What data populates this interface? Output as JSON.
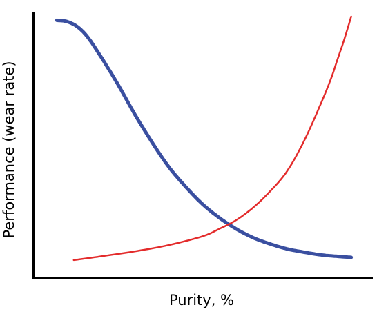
{
  "chart_data": {
    "type": "line",
    "xlabel": "Purity, %",
    "ylabel": "Performance (wear rate)",
    "xlim": [
      0,
      100
    ],
    "ylim": [
      0,
      100
    ],
    "grid": false,
    "legend": "none",
    "series": [
      {
        "color": "#3a4fa0",
        "x": [
          7,
          10,
          13,
          16,
          20,
          25,
          30,
          35,
          40,
          45,
          50,
          55,
          60,
          65,
          70,
          75,
          80,
          85,
          90,
          94
        ],
        "y": [
          98.5,
          98.0,
          96.0,
          92.0,
          84.0,
          73.0,
          61.0,
          50.0,
          40.0,
          32.0,
          25.0,
          19.5,
          15.0,
          11.5,
          9.0,
          7.0,
          5.7,
          4.6,
          4.0,
          3.6
        ]
      },
      {
        "color": "#e32b2b",
        "x": [
          12,
          20,
          30,
          40,
          50,
          55,
          60,
          65,
          70,
          75,
          80,
          85,
          88,
          90,
          92,
          94
        ],
        "y": [
          2.5,
          4.0,
          6.0,
          8.5,
          12.0,
          15.0,
          18.5,
          23.5,
          30.0,
          38.0,
          50.0,
          65.0,
          75.0,
          83.0,
          91.0,
          100.0
        ]
      }
    ]
  }
}
